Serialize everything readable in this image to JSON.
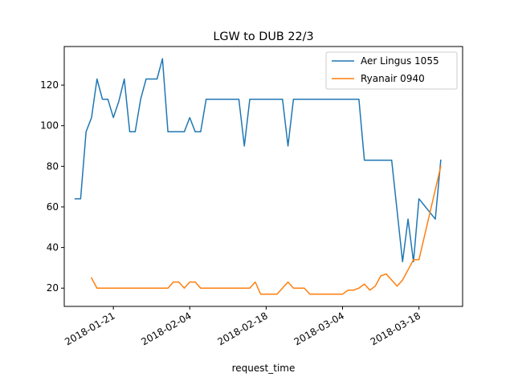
{
  "chart_data": {
    "type": "line",
    "title": "LGW to DUB 22/3",
    "xlabel": "request_time",
    "ylabel": "",
    "x_type": "date",
    "xlim": [
      "2018-01-12",
      "2018-03-26"
    ],
    "ylim": [
      11,
      139
    ],
    "x_ticks": [
      "2018-01-21",
      "2018-02-04",
      "2018-02-18",
      "2018-03-04",
      "2018-03-18"
    ],
    "y_ticks": [
      20,
      40,
      60,
      80,
      100,
      120
    ],
    "grid": false,
    "legend_position": "top-right",
    "series": [
      {
        "name": "Aer Lingus 1055",
        "color": "#1f77b4",
        "points": [
          [
            "2018-01-14",
            64
          ],
          [
            "2018-01-15",
            64
          ],
          [
            "2018-01-16",
            97
          ],
          [
            "2018-01-17",
            104
          ],
          [
            "2018-01-18",
            123
          ],
          [
            "2018-01-19",
            113
          ],
          [
            "2018-01-20",
            113
          ],
          [
            "2018-01-21",
            104
          ],
          [
            "2018-01-22",
            112
          ],
          [
            "2018-01-23",
            123
          ],
          [
            "2018-01-24",
            97
          ],
          [
            "2018-01-25",
            97
          ],
          [
            "2018-01-26",
            113
          ],
          [
            "2018-01-27",
            123
          ],
          [
            "2018-01-28",
            123
          ],
          [
            "2018-01-29",
            123
          ],
          [
            "2018-01-30",
            133
          ],
          [
            "2018-01-31",
            97
          ],
          [
            "2018-02-01",
            97
          ],
          [
            "2018-02-02",
            97
          ],
          [
            "2018-02-03",
            97
          ],
          [
            "2018-02-04",
            104
          ],
          [
            "2018-02-05",
            97
          ],
          [
            "2018-02-06",
            97
          ],
          [
            "2018-02-07",
            113
          ],
          [
            "2018-02-08",
            113
          ],
          [
            "2018-02-12",
            113
          ],
          [
            "2018-02-13",
            113
          ],
          [
            "2018-02-14",
            90
          ],
          [
            "2018-02-15",
            113
          ],
          [
            "2018-02-16",
            113
          ],
          [
            "2018-02-20",
            113
          ],
          [
            "2018-02-21",
            113
          ],
          [
            "2018-02-22",
            90
          ],
          [
            "2018-02-23",
            113
          ],
          [
            "2018-02-24",
            113
          ],
          [
            "2018-03-06",
            113
          ],
          [
            "2018-03-07",
            113
          ],
          [
            "2018-03-08",
            83
          ],
          [
            "2018-03-12",
            83
          ],
          [
            "2018-03-13",
            83
          ],
          [
            "2018-03-15",
            33
          ],
          [
            "2018-03-16",
            54
          ],
          [
            "2018-03-17",
            33
          ],
          [
            "2018-03-18",
            64
          ],
          [
            "2018-03-21",
            54
          ],
          [
            "2018-03-22",
            83
          ]
        ]
      },
      {
        "name": "Ryanair 0940",
        "color": "#ff7f0e",
        "points": [
          [
            "2018-01-17",
            25
          ],
          [
            "2018-01-18",
            20
          ],
          [
            "2018-01-31",
            20
          ],
          [
            "2018-02-01",
            23
          ],
          [
            "2018-02-02",
            23
          ],
          [
            "2018-02-03",
            20
          ],
          [
            "2018-02-04",
            23
          ],
          [
            "2018-02-05",
            23
          ],
          [
            "2018-02-06",
            20
          ],
          [
            "2018-02-15",
            20
          ],
          [
            "2018-02-16",
            23
          ],
          [
            "2018-02-17",
            17
          ],
          [
            "2018-02-20",
            17
          ],
          [
            "2018-02-22",
            23
          ],
          [
            "2018-02-23",
            20
          ],
          [
            "2018-02-25",
            20
          ],
          [
            "2018-02-26",
            17
          ],
          [
            "2018-03-04",
            17
          ],
          [
            "2018-03-05",
            19
          ],
          [
            "2018-03-06",
            19
          ],
          [
            "2018-03-07",
            20
          ],
          [
            "2018-03-08",
            22
          ],
          [
            "2018-03-09",
            19
          ],
          [
            "2018-03-10",
            21
          ],
          [
            "2018-03-11",
            26
          ],
          [
            "2018-03-12",
            27
          ],
          [
            "2018-03-14",
            21
          ],
          [
            "2018-03-15",
            24
          ],
          [
            "2018-03-16",
            29
          ],
          [
            "2018-03-17",
            34
          ],
          [
            "2018-03-18",
            34
          ],
          [
            "2018-03-22",
            80
          ]
        ]
      }
    ]
  }
}
